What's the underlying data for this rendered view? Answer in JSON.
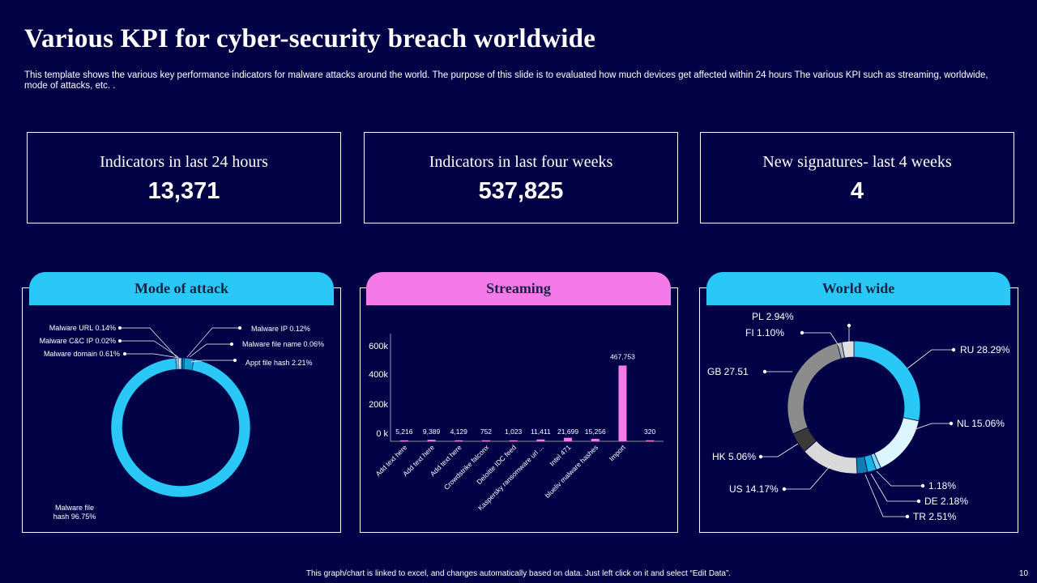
{
  "title": "Various KPI for cyber-security  breach worldwide",
  "subtitle": "This template shows the various key performance indicators for malware attacks around the world. The purpose of this slide is to evaluated how much devices get affected within 24 hours The various KPI such as streaming, worldwide, mode of attacks, etc. .",
  "kpis": [
    {
      "label": "Indicators in last 24 hours",
      "value": "13,371"
    },
    {
      "label": "Indicators in last four weeks",
      "value": "537,825"
    },
    {
      "label": "New signatures- last 4 weeks",
      "value": "4"
    }
  ],
  "tabs": {
    "mode": "Mode of attack",
    "streaming": "Streaming",
    "world": "World wide"
  },
  "colors": {
    "background": "#020347",
    "cyan": "#29C8F7",
    "pink": "#F47AE9",
    "white": "#FFFFFF"
  },
  "footer": "This graph/chart is linked to excel, and changes automatically based on data. Just left click on it and select “Edit Data”.",
  "page_number": "10",
  "chart_data": [
    {
      "type": "pie",
      "title": "Mode of attack",
      "slices": [
        {
          "label": "Malware file hash 96.75%",
          "value": 96.75,
          "color": "#29C8F7"
        },
        {
          "label": "Malware  URL 0.14%",
          "value": 0.14,
          "color": "#7FDBF9"
        },
        {
          "label": "Malware  C&C IP 0.02%",
          "value": 0.02,
          "color": "#FFFFFF"
        },
        {
          "label": "Malware  domain 0.61%",
          "value": 0.61,
          "color": "#CFF2FD"
        },
        {
          "label": "Malware  IP 0.12%",
          "value": 0.12,
          "color": "#0B6E98"
        },
        {
          "label": "Malware  file name 0.06%",
          "value": 0.06,
          "color": "#1596C4"
        },
        {
          "label": "Appt file hash 2.21%",
          "value": 2.21,
          "color": "#18A3D6"
        }
      ]
    },
    {
      "type": "bar",
      "title": "Streaming",
      "categories": [
        "Add text here",
        "Add text here",
        "Add text here",
        "Crowdstrike falconx",
        "Deloitte IDC feed",
        "Kaspersky ransomware url ...",
        "Intel 471",
        "blueliv malware hashes",
        "Import",
        ""
      ],
      "values": [
        5216,
        9389,
        4129,
        752,
        1023,
        11411,
        21699,
        15256,
        467753,
        320
      ],
      "value_labels": [
        "5,216",
        "9,389",
        "4,129",
        "752",
        "1,023",
        "11,411",
        "21,699",
        "15,256",
        "467,753",
        "320"
      ],
      "y_ticks": [
        "0 k",
        "200k",
        "400k",
        "600k"
      ],
      "ylim": [
        0,
        600000
      ],
      "color": "#F47AE9"
    },
    {
      "type": "pie",
      "title": "World wide",
      "slices": [
        {
          "label": "RU 28.29%",
          "value": 28.29,
          "color": "#29C8F7"
        },
        {
          "label": "NL 15.06%",
          "value": 15.06,
          "color": "#DDF6FE"
        },
        {
          "label": "1.18%",
          "value": 1.18,
          "color": "#7EDBFA"
        },
        {
          "label": "DE 2.18%",
          "value": 2.18,
          "color": "#1CB2E4"
        },
        {
          "label": "TR 2.51%",
          "value": 2.51,
          "color": "#0E7FAE"
        },
        {
          "label": "US 14.17%",
          "value": 14.17,
          "color": "#D9D9D9"
        },
        {
          "label": "HK 5.06%",
          "value": 5.06,
          "color": "#3A3A3A"
        },
        {
          "label": "GB 27.51",
          "value": 27.51,
          "color": "#8C8C8C"
        },
        {
          "label": "FI 1.10%",
          "value": 1.1,
          "color": "#B3B3B3"
        },
        {
          "label": "PL 2.94%",
          "value": 2.94,
          "color": "#E0E0E0"
        }
      ]
    }
  ]
}
